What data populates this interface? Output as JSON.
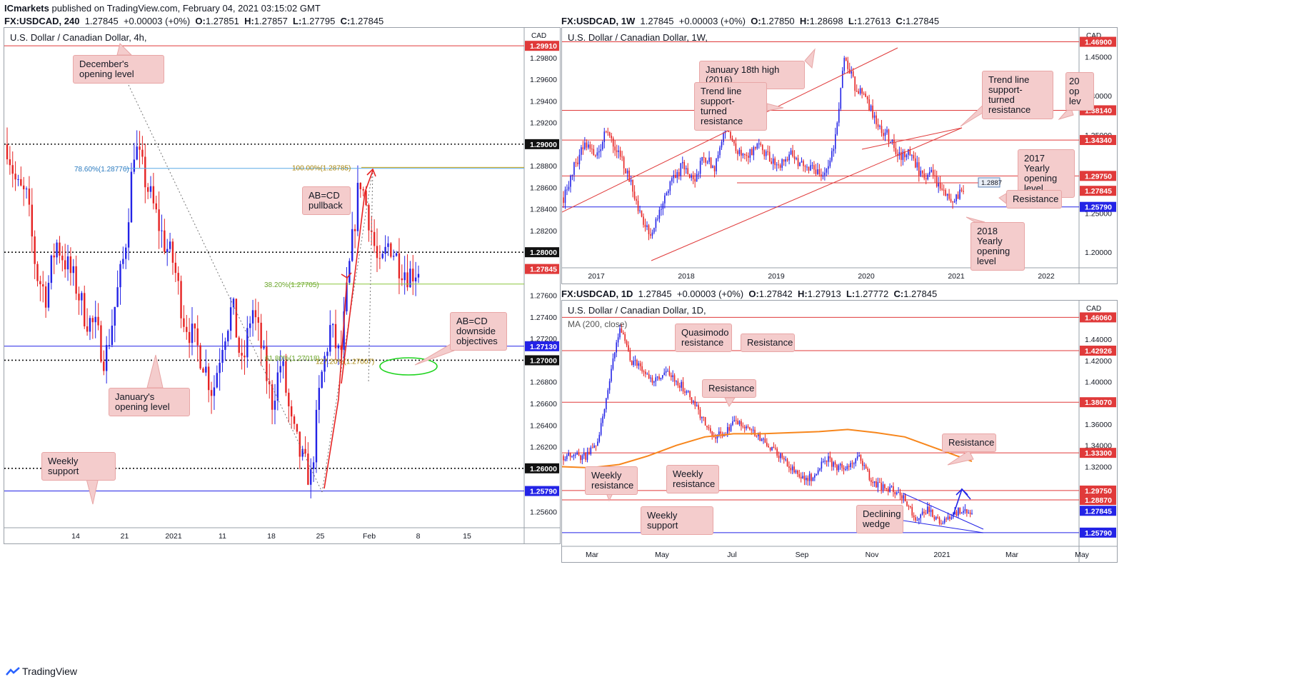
{
  "header": {
    "publisher": "ICmarkets",
    "published_text": "published on TradingView.com, February 04, 2021 03:15:02 GMT"
  },
  "footer": {
    "brand": "TradingView"
  },
  "colors": {
    "up": "#2323e6",
    "down": "#e62323",
    "level_red": "#e03a3a",
    "level_blue": "#2323e6",
    "note_bg": "#f4cccc",
    "ma": "#f7861c",
    "fib_gold": "#c8a415",
    "fib_green": "#8cc63f",
    "fib_blue": "#5aa9e6"
  },
  "charts": [
    {
      "id": "h4",
      "ohlc_line": {
        "symbol": "FX:USDCAD, 240",
        "last": "1.27845",
        "change": "+0.00003 (+0%)",
        "O": "1.27851",
        "H": "1.27857",
        "L": "1.27795",
        "C": "1.27845"
      },
      "title": "U.S. Dollar / Canadian Dollar, 4h,",
      "currency": "CAD",
      "x_ticks": [
        "14",
        "21",
        "2021",
        "11",
        "18",
        "25",
        "Feb",
        "8",
        "15"
      ],
      "y_ticks": [
        "1.29800",
        "1.29600",
        "1.29400",
        "1.29200",
        "1.28800",
        "1.28600",
        "1.28400",
        "1.28200",
        "1.27600",
        "1.27400",
        "1.27200",
        "1.26800",
        "1.26600",
        "1.26400",
        "1.26200",
        "1.25600"
      ],
      "price_labels": [
        {
          "text": "1.29910",
          "value": 1.2991,
          "kind": "red"
        },
        {
          "text": "1.29000",
          "value": 1.29,
          "kind": "black"
        },
        {
          "text": "1.28000",
          "value": 1.28,
          "kind": "black"
        },
        {
          "text": "1.27845",
          "value": 1.27845,
          "kind": "red"
        },
        {
          "text": "1.27130",
          "value": 1.2713,
          "kind": "blue"
        },
        {
          "text": "1.27000",
          "value": 1.27,
          "kind": "black"
        },
        {
          "text": "1.26000",
          "value": 1.26,
          "kind": "black"
        },
        {
          "text": "1.25790",
          "value": 1.2579,
          "kind": "blue"
        }
      ],
      "fib_labels": [
        {
          "text": "78.60%(1.28776)",
          "value": 1.28776
        },
        {
          "text": "100.00%(1.28785)",
          "value": 1.28785
        },
        {
          "text": "38.20%(1.27705)",
          "value": 1.27705
        },
        {
          "text": "61.80%(1.27018)",
          "value": 1.27018
        },
        {
          "text": "127.20%(1.27007)",
          "value": 1.27007
        }
      ],
      "annotations": [
        "December's opening level",
        "AB=CD pullback",
        "AB=CD downside objectives",
        "January's opening level",
        "Weekly support"
      ]
    },
    {
      "id": "w1",
      "ohlc_line": {
        "symbol": "FX:USDCAD, 1W",
        "last": "1.27845",
        "change": "+0.00003 (+0%)",
        "O": "1.27850",
        "H": "1.28698",
        "L": "1.27613",
        "C": "1.27845"
      },
      "title": "U.S. Dollar / Canadian Dollar, 1W,",
      "currency": "CAD",
      "x_ticks": [
        "2017",
        "2018",
        "2019",
        "2020",
        "2021",
        "2022"
      ],
      "y_ticks": [
        "1.45000",
        "1.40000",
        "1.35000",
        "1.25000",
        "1.20000"
      ],
      "price_labels": [
        {
          "text": "1.46900",
          "value": 1.469,
          "kind": "red"
        },
        {
          "text": "1.38140",
          "value": 1.3814,
          "kind": "red"
        },
        {
          "text": "1.34340",
          "value": 1.3434,
          "kind": "red"
        },
        {
          "text": "1.29750",
          "value": 1.2975,
          "kind": "red"
        },
        {
          "text": "1.27845",
          "value": 1.27845,
          "kind": "red"
        },
        {
          "text": "1.25790",
          "value": 1.2579,
          "kind": "blue"
        }
      ],
      "inline_label": "1.2887",
      "annotations": [
        "January 18th high (2016)",
        "Trend line support-turned resistance",
        "Trend line support-turned resistance",
        "2017 Yearly opening level",
        "Resistance",
        "2018 Yearly opening level"
      ],
      "cut_annotation": [
        "20",
        "op",
        "lev"
      ]
    },
    {
      "id": "d1",
      "ohlc_line": {
        "symbol": "FX:USDCAD, 1D",
        "last": "1.27845",
        "change": "+0.00003 (+0%)",
        "O": "1.27842",
        "H": "1.27913",
        "L": "1.27772",
        "C": "1.27845"
      },
      "title": "U.S. Dollar / Canadian Dollar, 1D,",
      "ma_label": "MA (200, close)",
      "currency": "CAD",
      "x_ticks": [
        "Mar",
        "May",
        "Jul",
        "Sep",
        "Nov",
        "2021",
        "Mar",
        "May"
      ],
      "y_ticks": [
        "1.44000",
        "1.42000",
        "1.40000",
        "1.36000",
        "1.34000",
        "1.32000"
      ],
      "price_labels": [
        {
          "text": "1.46060",
          "value": 1.4606,
          "kind": "red"
        },
        {
          "text": "1.42926",
          "value": 1.42926,
          "kind": "red"
        },
        {
          "text": "1.38070",
          "value": 1.3807,
          "kind": "red"
        },
        {
          "text": "1.33300",
          "value": 1.333,
          "kind": "red"
        },
        {
          "text": "1.29750",
          "value": 1.2975,
          "kind": "red"
        },
        {
          "text": "1.28870",
          "value": 1.2887,
          "kind": "red"
        },
        {
          "text": "1.27845",
          "value": 1.27845,
          "kind": "blue"
        },
        {
          "text": "1.25790",
          "value": 1.2579,
          "kind": "blue"
        }
      ],
      "annotations": [
        "Quasimodo resistance",
        "Resistance",
        "Resistance",
        "Resistance",
        "Weekly resistance",
        "Weekly resistance",
        "Weekly support",
        "Declining wedge"
      ]
    }
  ],
  "chart_data": [
    {
      "type": "candlestick",
      "title": "U.S. Dollar / Canadian Dollar, 4h",
      "ylim": [
        1.2545,
        1.3005
      ],
      "x_labels": [
        "14",
        "21",
        "2021",
        "11",
        "18",
        "25",
        "Feb",
        "8",
        "15"
      ],
      "close_path": [
        1.29,
        1.286,
        1.285,
        1.278,
        1.276,
        1.281,
        1.279,
        1.277,
        1.274,
        1.273,
        1.27,
        1.275,
        1.28,
        1.29,
        1.287,
        1.284,
        1.281,
        1.279,
        1.274,
        1.272,
        1.27,
        1.267,
        1.272,
        1.275,
        1.269,
        1.275,
        1.271,
        1.266,
        1.27,
        1.264,
        1.261,
        1.259,
        1.268,
        1.273,
        1.27,
        1.279,
        1.287,
        1.283,
        1.278,
        1.281,
        1.279,
        1.278,
        1.2785
      ],
      "levels": [
        1.2991,
        1.29,
        1.28,
        1.2713,
        1.27,
        1.26,
        1.2579
      ]
    },
    {
      "type": "candlestick",
      "title": "U.S. Dollar / Canadian Dollar, 1W",
      "ylim": [
        1.18,
        1.485
      ],
      "x_labels": [
        "2017",
        "2018",
        "2019",
        "2020",
        "2021",
        "2022"
      ],
      "close_path": [
        1.27,
        1.31,
        1.34,
        1.32,
        1.36,
        1.33,
        1.3,
        1.25,
        1.22,
        1.26,
        1.29,
        1.31,
        1.29,
        1.32,
        1.31,
        1.36,
        1.33,
        1.32,
        1.34,
        1.32,
        1.31,
        1.33,
        1.31,
        1.31,
        1.3,
        1.33,
        1.45,
        1.41,
        1.4,
        1.36,
        1.35,
        1.32,
        1.33,
        1.3,
        1.3,
        1.28,
        1.27,
        1.2785
      ],
      "levels": [
        1.469,
        1.3814,
        1.3434,
        1.2975,
        1.2887,
        1.2579
      ]
    },
    {
      "type": "candlestick",
      "title": "U.S. Dollar / Canadian Dollar, 1D",
      "ylim": [
        1.245,
        1.475
      ],
      "x_labels": [
        "Mar",
        "May",
        "Jul",
        "Sep",
        "Nov",
        "2021",
        "Mar",
        "May"
      ],
      "close_path": [
        1.33,
        1.33,
        1.33,
        1.34,
        1.4,
        1.45,
        1.42,
        1.41,
        1.4,
        1.41,
        1.4,
        1.39,
        1.37,
        1.35,
        1.35,
        1.36,
        1.36,
        1.35,
        1.34,
        1.33,
        1.32,
        1.31,
        1.31,
        1.33,
        1.32,
        1.32,
        1.33,
        1.31,
        1.3,
        1.3,
        1.29,
        1.27,
        1.28,
        1.27,
        1.27,
        1.28,
        1.2785
      ],
      "ma_200": [
        1.32,
        1.319,
        1.322,
        1.33,
        1.34,
        1.348,
        1.351,
        1.351,
        1.352,
        1.353,
        1.355,
        1.352,
        1.348,
        1.325
      ],
      "levels": [
        1.4606,
        1.42926,
        1.3807,
        1.333,
        1.2975,
        1.2887,
        1.2579
      ]
    }
  ]
}
